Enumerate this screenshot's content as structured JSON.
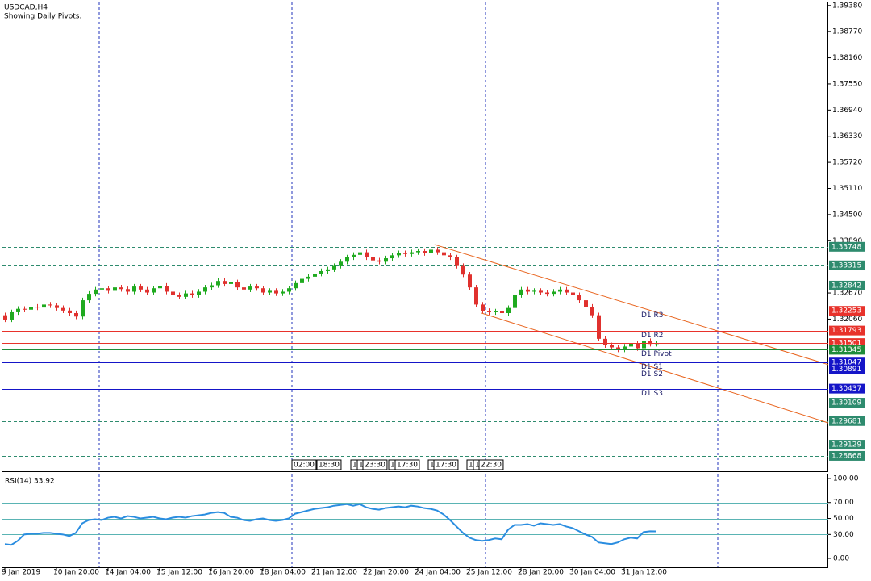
{
  "chart_data": [
    {
      "type": "candlestick",
      "title": "USDCAD,H4",
      "subtitle": "Showing Daily Pivots.",
      "x": [
        "9 Jan 2019",
        null,
        null,
        null,
        null,
        null,
        null,
        null,
        "10 Jan 20:00",
        null,
        null,
        null,
        null,
        null,
        null,
        null,
        "14 Jan 04:00",
        null,
        null,
        null,
        null,
        null,
        null,
        null,
        "15 Jan 12:00",
        null,
        null,
        null,
        null,
        null,
        null,
        null,
        "16 Jan 20:00",
        null,
        null,
        null,
        null,
        null,
        null,
        null,
        "18 Jan 04:00",
        null,
        null,
        null,
        null,
        null,
        null,
        null,
        "21 Jan 12:00",
        null,
        null,
        null,
        null,
        null,
        null,
        null,
        "22 Jan 20:00",
        null,
        null,
        null,
        null,
        null,
        null,
        null,
        "24 Jan 04:00",
        null,
        null,
        null,
        null,
        null,
        null,
        null,
        "25 Jan 12:00",
        null,
        null,
        null,
        null,
        null,
        null,
        null,
        "28 Jan 20:00",
        null,
        null,
        null,
        null,
        null,
        null,
        null,
        "30 Jan 04:00",
        null,
        null,
        null,
        null,
        null,
        null,
        null,
        "31 Jan 12:00",
        null,
        null,
        null,
        null,
        null
      ],
      "open": [
        1.3215,
        1.3205,
        1.3222,
        1.323,
        1.3228,
        1.3235,
        1.3233,
        1.324,
        1.3238,
        1.3232,
        1.3226,
        1.322,
        1.3212,
        1.325,
        1.3265,
        1.3275,
        1.3278,
        1.3272,
        1.328,
        1.3276,
        1.327,
        1.3282,
        1.3275,
        1.3268,
        1.3278,
        1.3284,
        1.327,
        1.3262,
        1.3258,
        1.3266,
        1.3262,
        1.327,
        1.328,
        1.3285,
        1.3295,
        1.3288,
        1.3292,
        1.328,
        1.3275,
        1.3282,
        1.3278,
        1.3268,
        1.3272,
        1.3266,
        1.327,
        1.3278,
        1.329,
        1.33,
        1.3305,
        1.3312,
        1.3318,
        1.3322,
        1.333,
        1.334,
        1.335,
        1.3356,
        1.3362,
        1.335,
        1.3343,
        1.334,
        1.3348,
        1.3355,
        1.336,
        1.3358,
        1.3362,
        1.3365,
        1.336,
        1.3368,
        1.3362,
        1.3355,
        1.335,
        1.333,
        1.331,
        1.328,
        1.324,
        1.3225,
        1.3222,
        1.3224,
        1.322,
        1.3232,
        1.3262,
        1.3275,
        1.327,
        1.3272,
        1.3268,
        1.3265,
        1.327,
        1.3275,
        1.3268,
        1.3262,
        1.325,
        1.3235,
        1.3215,
        1.316,
        1.3145,
        1.314,
        1.3135,
        1.3142,
        1.315,
        1.3138,
        1.3155,
        1.3148
      ],
      "high": [
        1.3221,
        1.3228,
        1.3236,
        1.3236,
        1.3241,
        1.3241,
        1.3246,
        1.3246,
        1.3244,
        1.3238,
        1.3232,
        1.3226,
        1.3256,
        1.3271,
        1.3281,
        1.3284,
        1.3284,
        1.3286,
        1.3286,
        1.3282,
        1.3288,
        1.3288,
        1.3281,
        1.3284,
        1.329,
        1.329,
        1.3276,
        1.3268,
        1.3272,
        1.3272,
        1.3276,
        1.3286,
        1.3291,
        1.3301,
        1.3301,
        1.3298,
        1.3298,
        1.3286,
        1.3288,
        1.3288,
        1.3284,
        1.3278,
        1.3278,
        1.3276,
        1.3284,
        1.3296,
        1.3306,
        1.3311,
        1.3318,
        1.3324,
        1.3328,
        1.3336,
        1.3346,
        1.3356,
        1.3362,
        1.3368,
        1.3368,
        1.3356,
        1.3349,
        1.3354,
        1.3361,
        1.3366,
        1.3366,
        1.3368,
        1.3371,
        1.3371,
        1.3374,
        1.3374,
        1.3368,
        1.3361,
        1.3356,
        1.3336,
        1.3316,
        1.3286,
        1.3246,
        1.3231,
        1.323,
        1.323,
        1.3238,
        1.3268,
        1.3281,
        1.3281,
        1.3278,
        1.3278,
        1.3274,
        1.3276,
        1.3281,
        1.3281,
        1.3274,
        1.3268,
        1.3256,
        1.3241,
        1.3221,
        1.3166,
        1.3151,
        1.3146,
        1.3148,
        1.3156,
        1.3156,
        1.3161,
        1.3161,
        1.3156
      ],
      "low": [
        1.3199,
        1.3199,
        1.3216,
        1.3222,
        1.3222,
        1.3227,
        1.3227,
        1.3232,
        1.3226,
        1.322,
        1.3214,
        1.3206,
        1.3206,
        1.3244,
        1.3259,
        1.3269,
        1.3266,
        1.3266,
        1.327,
        1.3264,
        1.3264,
        1.3269,
        1.3262,
        1.3262,
        1.3272,
        1.3264,
        1.3256,
        1.3252,
        1.3252,
        1.3256,
        1.3256,
        1.3264,
        1.3274,
        1.3279,
        1.3282,
        1.3282,
        1.3274,
        1.3269,
        1.3269,
        1.3272,
        1.3262,
        1.3262,
        1.326,
        1.326,
        1.3264,
        1.3272,
        1.3284,
        1.3294,
        1.3299,
        1.3306,
        1.3312,
        1.3316,
        1.3324,
        1.3334,
        1.3344,
        1.335,
        1.3344,
        1.3337,
        1.3334,
        1.3334,
        1.3342,
        1.3349,
        1.3352,
        1.3352,
        1.3356,
        1.3354,
        1.3354,
        1.3356,
        1.3349,
        1.3344,
        1.3324,
        1.3304,
        1.3274,
        1.3234,
        1.3219,
        1.3216,
        1.3216,
        1.3214,
        1.3214,
        1.3226,
        1.3256,
        1.3264,
        1.3264,
        1.3262,
        1.3259,
        1.3259,
        1.3264,
        1.3262,
        1.3256,
        1.3244,
        1.3229,
        1.3209,
        1.3154,
        1.3139,
        1.3134,
        1.3129,
        1.3129,
        1.3136,
        1.3132,
        1.3132,
        1.3142,
        1.3142
      ],
      "close": [
        1.3205,
        1.3222,
        1.323,
        1.3228,
        1.3235,
        1.3233,
        1.324,
        1.3238,
        1.3232,
        1.3226,
        1.322,
        1.3212,
        1.325,
        1.3265,
        1.3275,
        1.3278,
        1.3272,
        1.328,
        1.3276,
        1.327,
        1.3282,
        1.3275,
        1.3268,
        1.3278,
        1.3284,
        1.327,
        1.3262,
        1.3258,
        1.3266,
        1.3262,
        1.327,
        1.328,
        1.3285,
        1.3295,
        1.3288,
        1.3292,
        1.328,
        1.3275,
        1.3282,
        1.3278,
        1.3268,
        1.3272,
        1.3266,
        1.327,
        1.3278,
        1.329,
        1.33,
        1.3305,
        1.3312,
        1.3318,
        1.3322,
        1.333,
        1.334,
        1.335,
        1.3356,
        1.3362,
        1.335,
        1.3343,
        1.334,
        1.3348,
        1.3355,
        1.336,
        1.3358,
        1.3362,
        1.3365,
        1.336,
        1.3368,
        1.3362,
        1.3355,
        1.335,
        1.333,
        1.331,
        1.328,
        1.324,
        1.3225,
        1.3222,
        1.3224,
        1.322,
        1.3232,
        1.3262,
        1.3275,
        1.327,
        1.3272,
        1.3268,
        1.3265,
        1.327,
        1.3275,
        1.3268,
        1.3262,
        1.325,
        1.3235,
        1.3215,
        1.316,
        1.3145,
        1.314,
        1.3135,
        1.3142,
        1.315,
        1.3138,
        1.3155,
        1.3148,
        1.315
      ],
      "up_color": "#1faa1f",
      "down_color": "#e0312e",
      "ylim": [
        1.2849,
        1.3947
      ],
      "yticks": [
        {
          "value": 1.3938,
          "label": "1.39380"
        },
        {
          "value": 1.3877,
          "label": "1.38770"
        },
        {
          "value": 1.3816,
          "label": "1.38160"
        },
        {
          "value": 1.3755,
          "label": "1.37550"
        },
        {
          "value": 1.3694,
          "label": "1.36940"
        },
        {
          "value": 1.3633,
          "label": "1.36330"
        },
        {
          "value": 1.3572,
          "label": "1.35720"
        },
        {
          "value": 1.3511,
          "label": "1.35110"
        },
        {
          "value": 1.345,
          "label": "1.34500"
        },
        {
          "value": 1.3389,
          "label": "1.33890"
        },
        {
          "value": 1.3267,
          "label": "1.32670"
        },
        {
          "value": 1.3206,
          "label": "1.32060"
        }
      ],
      "levels": [
        1.33748,
        1.33315,
        1.32842,
        1.30109,
        1.29681,
        1.29129,
        1.28868
      ],
      "level_color": "#2e8b6e",
      "pivots": [
        {
          "name": "D1 R3",
          "value": 1.32253,
          "color": "#e8322b"
        },
        {
          "name": "D1 R2",
          "value": 1.31793,
          "color": "#e8322b"
        },
        {
          "value": 1.31501,
          "color": "#e8322b"
        },
        {
          "name": "D1 Pivot",
          "value": 1.31345,
          "color": "#1e8c3a"
        },
        {
          "name": "D1 S1",
          "value": 1.31047,
          "color": "#1515c8"
        },
        {
          "name": "D1 S2",
          "value": 1.30891,
          "color": "#1515c8"
        },
        {
          "name": "D1 S3",
          "value": 1.30437,
          "color": "#1515c8"
        }
      ],
      "trendlines": [
        {
          "x": [
            66.6,
            128
          ],
          "y": [
            1.338,
            1.3098
          ]
        },
        {
          "x": [
            73.9,
            128
          ],
          "y": [
            1.322,
            1.2962
          ]
        }
      ],
      "trendline_color": "#e8641e",
      "markers": [
        "02:00",
        "18:30",
        "1",
        "1",
        "23:30",
        "1",
        "17:30",
        "1",
        "17:30",
        "1",
        "1",
        "22:30"
      ]
    },
    {
      "type": "line",
      "title": "RSI(14) 33.92",
      "color": "#2a8de0",
      "values": [
        18,
        17,
        22,
        30,
        31,
        31,
        32,
        32,
        31,
        30,
        28,
        32,
        44,
        48,
        49,
        48,
        51,
        52,
        50,
        53,
        52,
        50,
        51,
        52,
        50,
        49,
        51,
        52,
        51,
        53,
        54,
        55,
        57,
        58,
        57,
        52,
        51,
        48,
        47,
        49,
        50,
        48,
        47,
        48,
        50,
        56,
        58,
        60,
        62,
        63,
        64,
        66,
        67,
        68,
        66,
        68,
        64,
        62,
        61,
        63,
        64,
        65,
        64,
        66,
        65,
        63,
        62,
        60,
        55,
        48,
        40,
        32,
        26,
        23,
        22,
        23,
        25,
        24,
        36,
        42,
        42,
        43,
        41,
        44,
        43,
        42,
        43,
        40,
        38,
        34,
        30,
        27,
        20,
        19,
        18,
        20,
        24,
        26,
        25,
        33,
        34,
        33.92
      ],
      "ylim": [
        -11.1,
        105.1
      ],
      "yticks": [
        {
          "value": 100,
          "label": "100.00"
        },
        {
          "value": 70,
          "label": "70.00"
        },
        {
          "value": 50,
          "label": "50.00"
        },
        {
          "value": 30,
          "label": "30.00"
        },
        {
          "value": 0,
          "label": "0.00"
        }
      ],
      "levels": [
        70,
        50,
        30
      ],
      "level_color": "#5ab4b4"
    }
  ]
}
